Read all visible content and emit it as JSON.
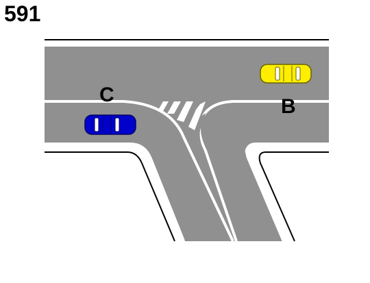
{
  "question_number": "591",
  "vehicles": [
    {
      "label": "C",
      "color_name": "blue",
      "body": "#0000cc",
      "outline": "#000066"
    },
    {
      "label": "B",
      "color_name": "yellow",
      "body": "#ffee00",
      "outline": "#666600"
    }
  ],
  "colors": {
    "road": "#909090",
    "marking": "#ffffff",
    "curb": "#000000",
    "background": "#ffffff"
  }
}
